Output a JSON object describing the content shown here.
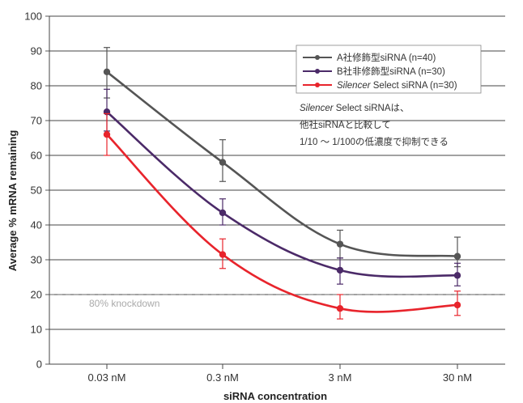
{
  "chart_data": {
    "type": "line",
    "xlabel": "siRNA concentration",
    "ylabel": "Average % mRNA remaining",
    "categories": [
      "0.03 nM",
      "0.3 nM",
      "3 nM",
      "30 nM"
    ],
    "ylim": [
      0,
      100
    ],
    "yticks": [
      0,
      10,
      20,
      30,
      40,
      50,
      60,
      70,
      80,
      90,
      100
    ],
    "grid": "horizontal",
    "legend_position": "top-right",
    "series": [
      {
        "name": "A社修飾型siRNA (n=40)",
        "color": "#555555",
        "values": [
          84,
          58,
          34.5,
          31
        ],
        "error": [
          [
            76.5,
            91
          ],
          [
            52.5,
            64.5
          ],
          [
            30.5,
            38.5
          ],
          [
            28,
            36.5
          ]
        ]
      },
      {
        "name": "B社非修飾型siRNA (n=30)",
        "color": "#4b2a68",
        "values": [
          72.5,
          43.5,
          27,
          25.5
        ],
        "error": [
          [
            67,
            79
          ],
          [
            40,
            47.5
          ],
          [
            23,
            30.5
          ],
          [
            22.5,
            29
          ]
        ]
      },
      {
        "name_italic": "Silencer",
        "name_rest": " Select siRNA (n=30)",
        "color": "#e8242c",
        "values": [
          66,
          31.5,
          16,
          17
        ],
        "error": [
          [
            60,
            72
          ],
          [
            27.5,
            36
          ],
          [
            13,
            20
          ],
          [
            14,
            21
          ]
        ]
      }
    ],
    "reference_line": {
      "value": 20,
      "label": "80% knockdown"
    },
    "annotation": {
      "italic": "Silencer",
      "line1_rest": " Select siRNAは、",
      "line2": "他社siRNAと比較して",
      "line3": "1/10 ～ 1/100の低濃度で抑制できる"
    }
  }
}
